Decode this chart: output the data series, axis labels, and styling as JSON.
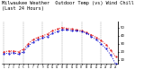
{
  "title": "Milwaukee Weather  Outdoor Temp (vs) Wind Chill (Last 24 Hours)",
  "temp": [
    20,
    21,
    21,
    20,
    23,
    30,
    35,
    38,
    40,
    42,
    46,
    48,
    50,
    49,
    48,
    47,
    46,
    44,
    41,
    38,
    34,
    29,
    22,
    14
  ],
  "wind_chill": [
    18,
    18,
    19,
    17,
    20,
    27,
    32,
    35,
    37,
    39,
    43,
    45,
    47,
    47,
    46,
    46,
    45,
    43,
    39,
    35,
    30,
    24,
    16,
    5
  ],
  "ylim": [
    5,
    57
  ],
  "yticks": [
    10,
    20,
    30,
    40,
    50
  ],
  "temp_color": "#dd0000",
  "wind_color": "#0000cc",
  "bg_color": "#ffffff",
  "grid_color": "#888888",
  "title_fontsize": 3.8,
  "n_points": 24,
  "grid_every": 4
}
